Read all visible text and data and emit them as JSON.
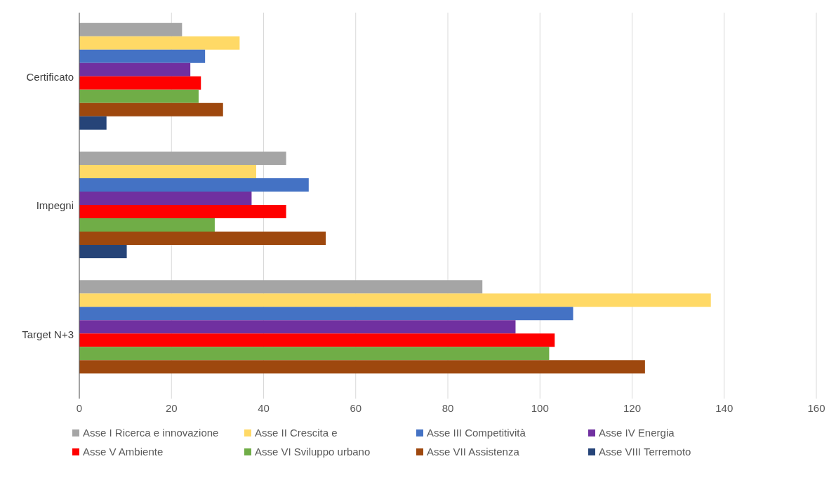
{
  "chart_data": {
    "type": "bar",
    "orientation": "horizontal",
    "categories": [
      "Certificato",
      "Impegni",
      "Target N+3"
    ],
    "series": [
      {
        "name": "Asse I Ricerca e innovazione",
        "color": "#a5a5a5",
        "values": [
          22.3,
          44.9,
          87.5
        ]
      },
      {
        "name": "Asse II Crescita e",
        "color": "#ffd966",
        "values": [
          34.8,
          38.4,
          137.1
        ]
      },
      {
        "name": "Asse III Competitività",
        "color": "#4472c4",
        "values": [
          27.3,
          49.8,
          107.2
        ]
      },
      {
        "name": "Asse IV Energia",
        "color": "#7030a0",
        "values": [
          24.1,
          37.4,
          94.7
        ]
      },
      {
        "name": "Asse V Ambiente",
        "color": "#ff0000",
        "values": [
          26.4,
          44.9,
          103.2
        ]
      },
      {
        "name": "Asse VI Sviluppo urbano",
        "color": "#70ad47",
        "values": [
          25.9,
          29.4,
          102
        ]
      },
      {
        "name": "Asse VII Assistenza",
        "color": "#9e480e",
        "values": [
          31.2,
          53.5,
          122.8
        ]
      },
      {
        "name": "Asse VIII Terremoto",
        "color": "#264478",
        "values": [
          5.9,
          10.3,
          null
        ]
      }
    ],
    "xlim": [
      0,
      160
    ],
    "xticks": [
      0,
      20,
      40,
      60,
      80,
      100,
      120,
      140,
      160
    ],
    "grid": "x",
    "legend": "bottom"
  }
}
